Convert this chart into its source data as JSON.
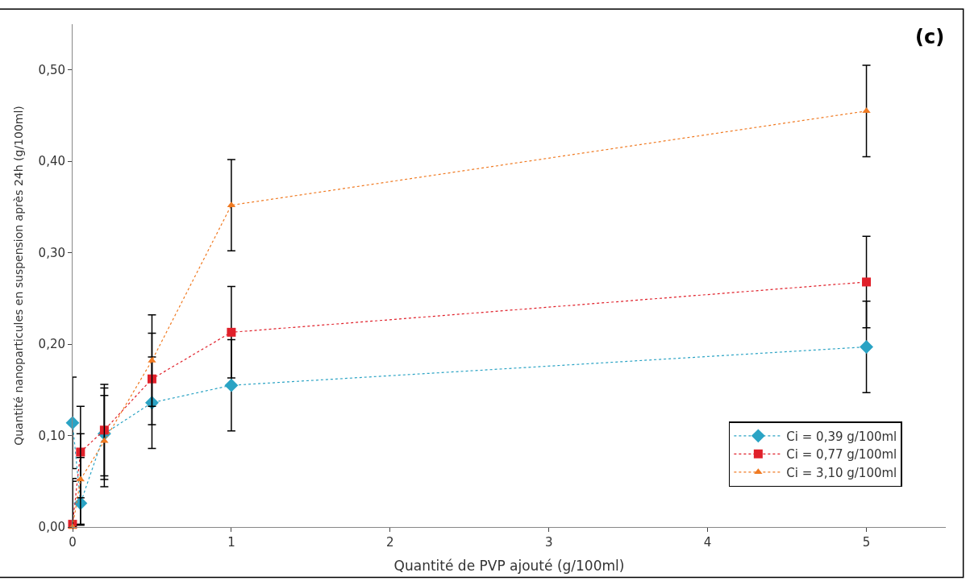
{
  "chart_data": {
    "type": "line",
    "title": "(c)",
    "xlabel": "Quantité de PVP ajouté (g/100ml)",
    "ylabel": "Quantité nanoparticules en suspension après 24h (g/100ml)",
    "x": [
      0,
      0.05,
      0.2,
      0.5,
      1,
      5
    ],
    "series": [
      {
        "name": "Ci = 0,39 g/100ml",
        "color": "#2aa3c4",
        "marker": "diamond",
        "values": [
          0.114,
          0.026,
          0.102,
          0.136,
          0.155,
          0.197
        ],
        "errors": [
          0.05,
          [
            0.003,
            0.076
          ],
          0.05,
          0.05,
          0.05,
          0.05
        ]
      },
      {
        "name": "Ci = 0,77 g/100ml",
        "color": "#e0202a",
        "marker": "square",
        "values": [
          0.003,
          0.082,
          0.106,
          0.162,
          0.213,
          0.268
        ],
        "errors": [
          [
            0,
            0.053
          ],
          0.05,
          0.05,
          0.05,
          0.05,
          0.05
        ]
      },
      {
        "name": "Ci = 3,10 g/100ml",
        "color": "#f07a22",
        "marker": "triangle",
        "values": [
          0,
          0.052,
          0.094,
          0.182,
          0.352,
          0.455
        ],
        "errors": [
          [
            0,
            0.05
          ],
          0.05,
          0.05,
          0.05,
          0.05,
          0.05
        ]
      }
    ],
    "line_style": "dotted",
    "xlim": [
      0,
      5.5
    ],
    "xticks": [
      0,
      1,
      2,
      3,
      4,
      5
    ],
    "ylim": [
      0,
      0.55
    ],
    "yticks": [
      {
        "value": 0,
        "label": "0,00"
      },
      {
        "value": 0.1,
        "label": "0,10"
      },
      {
        "value": 0.2,
        "label": "0,20"
      },
      {
        "value": 0.3,
        "label": "0,30"
      },
      {
        "value": 0.4,
        "label": "0,40"
      },
      {
        "value": 0.5,
        "label": "0,50"
      }
    ],
    "legend": "bottom right"
  }
}
